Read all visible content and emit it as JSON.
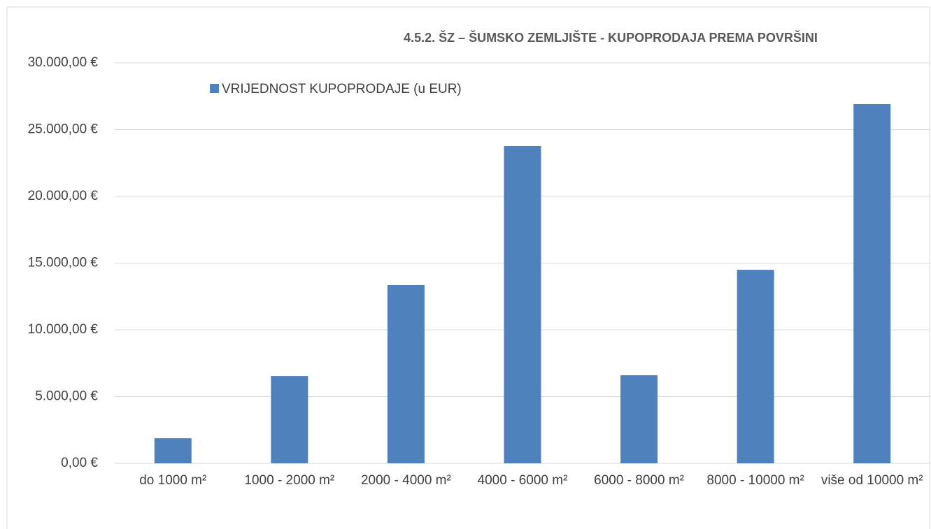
{
  "chart_data": {
    "type": "bar",
    "title": "4.5.2. ŠZ – ŠUMSKO ZEMLJIŠTE - KUPOPRODAJA PREMA POVRŠINI",
    "categories": [
      "do 1000 m²",
      "1000 - 2000 m²",
      "2000 - 4000 m²",
      "4000 - 6000 m²",
      "6000 - 8000 m²",
      "8000 - 10000 m²",
      "više od 10000 m²"
    ],
    "series": [
      {
        "name": "VRIJEDNOST KUPOPRODAJE (u EUR)",
        "color": "#4f81bd",
        "values": [
          1880,
          6540,
          13350,
          23770,
          6600,
          14500,
          26910
        ]
      }
    ],
    "ylim": [
      0,
      30000
    ],
    "yticks": [
      {
        "value": 0,
        "label": "0,00 €"
      },
      {
        "value": 5000,
        "label": "5.000,00 €"
      },
      {
        "value": 10000,
        "label": "10.000,00 €"
      },
      {
        "value": 15000,
        "label": "15.000,00 €"
      },
      {
        "value": 20000,
        "label": "20.000,00 €"
      },
      {
        "value": 25000,
        "label": "25.000,00 €"
      },
      {
        "value": 30000,
        "label": "30.000,00 €"
      }
    ],
    "grid": true
  }
}
